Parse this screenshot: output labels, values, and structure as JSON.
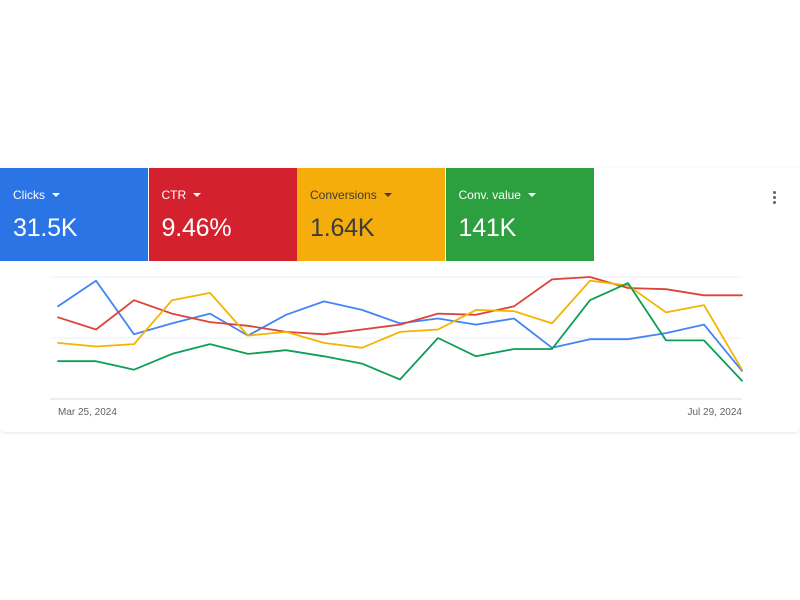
{
  "metrics": [
    {
      "label": "Clicks",
      "value": "31.5K",
      "color": "#2a74e6",
      "text_color": "#ffffff"
    },
    {
      "label": "CTR",
      "value": "9.46%",
      "color": "#d3222d",
      "text_color": "#ffffff"
    },
    {
      "label": "Conversions",
      "value": "1.64K",
      "color": "#f4ad0b",
      "text_color": "#3c3c3c"
    },
    {
      "label": "Conv. value",
      "value": "141K",
      "color": "#2c9f3f",
      "text_color": "#ffffff"
    }
  ],
  "more_icon": "more-vert-icon",
  "chart_data": {
    "type": "line",
    "x": [
      "Mar 25, 2024",
      "Apr 1, 2024",
      "Apr 8, 2024",
      "Apr 15, 2024",
      "Apr 22, 2024",
      "Apr 29, 2024",
      "May 6, 2024",
      "May 13, 2024",
      "May 20, 2024",
      "May 27, 2024",
      "Jun 3, 2024",
      "Jun 10, 2024",
      "Jun 17, 2024",
      "Jun 24, 2024",
      "Jul 1, 2024",
      "Jul 8, 2024",
      "Jul 15, 2024",
      "Jul 22, 2024",
      "Jul 29, 2024"
    ],
    "x_tick_labels": [
      "Mar 25, 2024",
      "Jul 29, 2024"
    ],
    "y_axis_labels_visible": false,
    "grid": "horizontal",
    "ylim": [
      0,
      100
    ],
    "series": [
      {
        "name": "Clicks",
        "color": "#4285f4",
        "values": [
          76,
          97,
          53,
          62,
          70,
          52,
          69,
          80,
          73,
          62,
          66,
          61,
          66,
          42,
          49,
          49,
          54,
          61,
          23
        ]
      },
      {
        "name": "CTR",
        "color": "#db4437",
        "values": [
          67,
          57,
          81,
          70,
          63,
          60,
          55,
          53,
          57,
          61,
          70,
          69,
          76,
          98,
          100,
          91,
          90,
          85,
          85
        ]
      },
      {
        "name": "Conversions",
        "color": "#f4b400",
        "values": [
          46,
          43,
          45,
          81,
          87,
          52,
          55,
          46,
          42,
          55,
          57,
          73,
          72,
          62,
          97,
          93,
          71,
          77,
          24
        ]
      },
      {
        "name": "Conv. value",
        "color": "#0f9d58",
        "values": [
          31,
          31,
          24,
          37,
          45,
          37,
          40,
          35,
          29,
          16,
          50,
          35,
          41,
          41,
          81,
          95,
          48,
          48,
          15
        ]
      }
    ]
  }
}
